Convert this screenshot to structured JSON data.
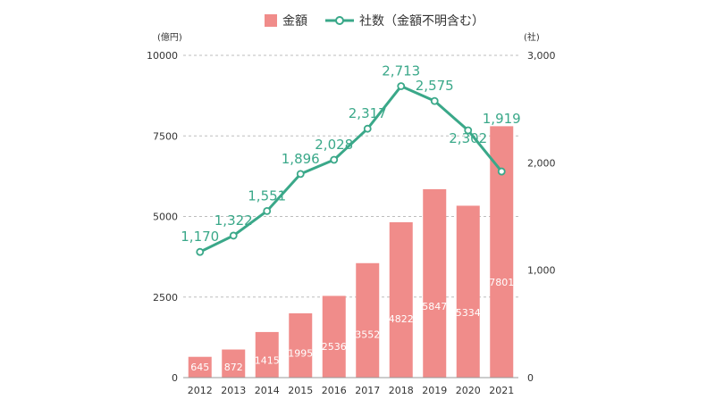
{
  "chart_data": {
    "type": "bar",
    "categories": [
      "2012",
      "2013",
      "2014",
      "2015",
      "2016",
      "2017",
      "2018",
      "2019",
      "2020",
      "2021"
    ],
    "series": [
      {
        "name": "金額",
        "type": "bar",
        "axis": "left",
        "values": [
          645,
          872,
          1415,
          1995,
          2536,
          3552,
          4822,
          5847,
          5334,
          7801
        ],
        "labels": [
          "645",
          "872",
          "1415",
          "1995",
          "2536",
          "3552",
          "4822",
          "5847",
          "5334",
          "7801"
        ],
        "color": "#f08c8a"
      },
      {
        "name": "社数（金額不明含む）",
        "type": "line",
        "axis": "right",
        "values": [
          1170,
          1322,
          1551,
          1896,
          2028,
          2317,
          2713,
          2575,
          2302,
          1919
        ],
        "labels": [
          "1,170",
          "1,322",
          "1,551",
          "1,896",
          "2,028",
          "2,317",
          "2,713",
          "2,575",
          "2,302",
          "1,919"
        ],
        "color": "#3aa889"
      }
    ],
    "y_left": {
      "unit": "(億円)",
      "range": [
        0,
        10000
      ],
      "ticks": [
        0,
        2500,
        5000,
        7500,
        10000
      ],
      "tick_labels": [
        "0",
        "2500",
        "5000",
        "7500",
        "10000"
      ]
    },
    "y_right": {
      "unit": "(社)",
      "range": [
        0,
        3000
      ],
      "ticks": [
        0,
        1000,
        2000,
        3000
      ],
      "tick_labels": [
        "0",
        "1,000",
        "2,000",
        "3,000"
      ]
    },
    "grid": true,
    "legend_position": "top-center",
    "title": "",
    "xlabel": ""
  }
}
